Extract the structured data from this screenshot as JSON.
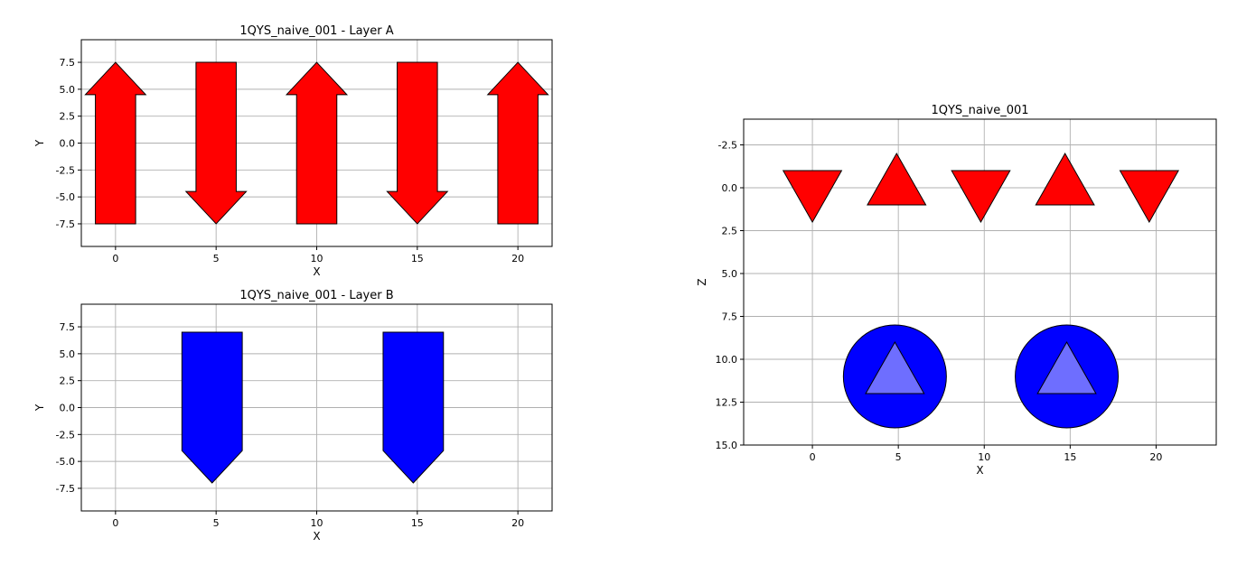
{
  "chart_data": [
    {
      "id": "layer_a",
      "type": "arrow-glyphs",
      "title": "1QYS_naive_001 - Layer A",
      "xlabel": "X",
      "ylabel": "Y",
      "xlim": [
        -1.7,
        21.7
      ],
      "ylim": [
        -9.6,
        9.6
      ],
      "y_inverted": false,
      "xticks": [
        0,
        5,
        10,
        15,
        20
      ],
      "yticks": [
        -7.5,
        -5.0,
        -2.5,
        0.0,
        2.5,
        5.0,
        7.5
      ],
      "grid": true,
      "color": "#ff0000",
      "arrows": [
        {
          "x": 0,
          "direction": "up",
          "y_start": -7.5,
          "y_end": 7.5
        },
        {
          "x": 5,
          "direction": "down",
          "y_start": 7.5,
          "y_end": -7.5
        },
        {
          "x": 10,
          "direction": "up",
          "y_start": -7.5,
          "y_end": 7.5
        },
        {
          "x": 15,
          "direction": "down",
          "y_start": 7.5,
          "y_end": -7.5
        },
        {
          "x": 20,
          "direction": "up",
          "y_start": -7.5,
          "y_end": 7.5
        }
      ]
    },
    {
      "id": "layer_b",
      "type": "arrow-glyphs",
      "title": "1QYS_naive_001 - Layer B",
      "xlabel": "X",
      "ylabel": "Y",
      "xlim": [
        -1.7,
        21.7
      ],
      "ylim": [
        -9.6,
        9.6
      ],
      "y_inverted": false,
      "xticks": [
        0,
        5,
        10,
        15,
        20
      ],
      "yticks": [
        -7.5,
        -5.0,
        -2.5,
        0.0,
        2.5,
        5.0,
        7.5
      ],
      "grid": true,
      "color": "#0000ff",
      "arrows": [
        {
          "x": 4.8,
          "direction": "down",
          "y_start": 7.0,
          "y_end": -7.0
        },
        {
          "x": 14.8,
          "direction": "down",
          "y_start": 7.0,
          "y_end": -7.0
        }
      ]
    },
    {
      "id": "xz_view",
      "type": "scatter-glyphs",
      "title": "1QYS_naive_001",
      "xlabel": "X",
      "ylabel": "Z",
      "xlim": [
        -4,
        23.5
      ],
      "ylim": [
        -4,
        15
      ],
      "y_inverted": true,
      "xticks": [
        0,
        5,
        10,
        15,
        20
      ],
      "yticks": [
        -2.5,
        0.0,
        2.5,
        5.0,
        7.5,
        10.0,
        12.5,
        15.0
      ],
      "grid": true,
      "triangles": [
        {
          "x": 0,
          "z": 0.5,
          "direction": "down",
          "color": "#ff0000"
        },
        {
          "x": 4.9,
          "z": 0.5,
          "direction": "up",
          "color": "#ff0000"
        },
        {
          "x": 9.8,
          "z": 0.5,
          "direction": "down",
          "color": "#ff0000"
        },
        {
          "x": 14.7,
          "z": 0.5,
          "direction": "up",
          "color": "#ff0000"
        },
        {
          "x": 19.6,
          "z": 0.5,
          "direction": "down",
          "color": "#ff0000"
        }
      ],
      "circles": [
        {
          "x": 4.8,
          "z": 11.0,
          "color": "#0000ff",
          "inner_color": "#6e6eff"
        },
        {
          "x": 14.8,
          "z": 11.0,
          "color": "#0000ff",
          "inner_color": "#6e6eff"
        }
      ]
    }
  ]
}
